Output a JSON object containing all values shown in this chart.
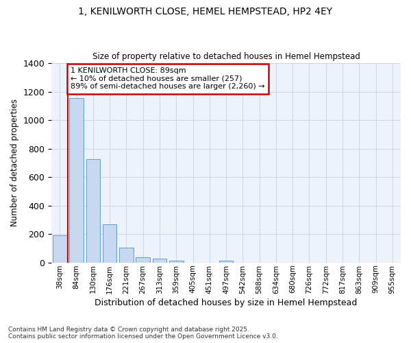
{
  "title1": "1, KENILWORTH CLOSE, HEMEL HEMPSTEAD, HP2 4EY",
  "title2": "Size of property relative to detached houses in Hemel Hempstead",
  "xlabel": "Distribution of detached houses by size in Hemel Hempstead",
  "ylabel": "Number of detached properties",
  "bar_labels": [
    "38sqm",
    "84sqm",
    "130sqm",
    "176sqm",
    "221sqm",
    "267sqm",
    "313sqm",
    "359sqm",
    "405sqm",
    "451sqm",
    "497sqm",
    "542sqm",
    "588sqm",
    "634sqm",
    "680sqm",
    "726sqm",
    "772sqm",
    "817sqm",
    "863sqm",
    "909sqm",
    "955sqm"
  ],
  "bar_values": [
    193,
    1155,
    725,
    270,
    105,
    35,
    28,
    13,
    0,
    0,
    15,
    0,
    0,
    0,
    0,
    0,
    0,
    0,
    0,
    0,
    0
  ],
  "bar_color": "#c5d8f0",
  "bar_edge_color": "#6699cc",
  "vline_color": "#cc0000",
  "annotation_text": "1 KENILWORTH CLOSE: 89sqm\n← 10% of detached houses are smaller (257)\n89% of semi-detached houses are larger (2,260) →",
  "annotation_box_color": "#ffffff",
  "annotation_box_edge": "#cc0000",
  "ylim": [
    0,
    1400
  ],
  "yticks": [
    0,
    200,
    400,
    600,
    800,
    1000,
    1200,
    1400
  ],
  "grid_color": "#d0d8e8",
  "bg_color": "#eef2fa",
  "footer1": "Contains HM Land Registry data © Crown copyright and database right 2025.",
  "footer2": "Contains public sector information licensed under the Open Government Licence v3.0."
}
